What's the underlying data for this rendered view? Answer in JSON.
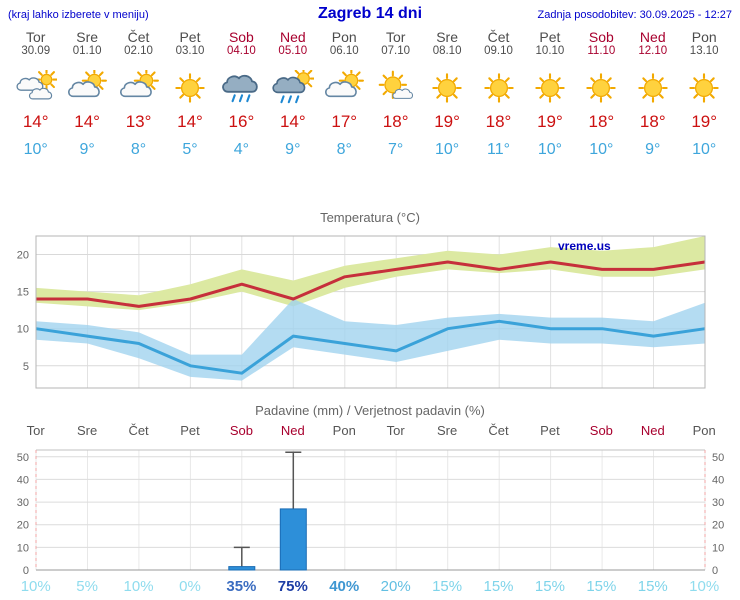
{
  "header": {
    "left_note": "(kraj lahko izberete v meniju)",
    "title": "Zagreb 14 dni",
    "updated": "Zadnja posodobitev: 30.09.2025 - 12:27"
  },
  "watermark": "vreme.us",
  "days": [
    {
      "name": "Tor",
      "date": "30.09",
      "weekend": false,
      "icon": "cloudy",
      "high": "14°",
      "low": "10°"
    },
    {
      "name": "Sre",
      "date": "01.10",
      "weekend": false,
      "icon": "partly-cloudy",
      "high": "14°",
      "low": "9°"
    },
    {
      "name": "Čet",
      "date": "02.10",
      "weekend": false,
      "icon": "partly-cloudy",
      "high": "13°",
      "low": "8°"
    },
    {
      "name": "Pet",
      "date": "03.10",
      "weekend": false,
      "icon": "sunny",
      "high": "14°",
      "low": "5°"
    },
    {
      "name": "Sob",
      "date": "04.10",
      "weekend": true,
      "icon": "rain",
      "high": "16°",
      "low": "4°"
    },
    {
      "name": "Ned",
      "date": "05.10",
      "weekend": true,
      "icon": "rain-showers",
      "high": "14°",
      "low": "9°"
    },
    {
      "name": "Pon",
      "date": "06.10",
      "weekend": false,
      "icon": "partly-cloudy",
      "high": "17°",
      "low": "8°"
    },
    {
      "name": "Tor",
      "date": "07.10",
      "weekend": false,
      "icon": "mostly-sunny",
      "high": "18°",
      "low": "7°"
    },
    {
      "name": "Sre",
      "date": "08.10",
      "weekend": false,
      "icon": "sunny",
      "high": "19°",
      "low": "10°"
    },
    {
      "name": "Čet",
      "date": "09.10",
      "weekend": false,
      "icon": "sunny",
      "high": "18°",
      "low": "11°"
    },
    {
      "name": "Pet",
      "date": "10.10",
      "weekend": false,
      "icon": "sunny",
      "high": "19°",
      "low": "10°"
    },
    {
      "name": "Sob",
      "date": "11.10",
      "weekend": true,
      "icon": "sunny",
      "high": "18°",
      "low": "10°"
    },
    {
      "name": "Ned",
      "date": "12.10",
      "weekend": true,
      "icon": "sunny",
      "high": "18°",
      "low": "9°"
    },
    {
      "name": "Pon",
      "date": "13.10",
      "weekend": false,
      "icon": "sunny",
      "high": "19°",
      "low": "10°"
    }
  ],
  "chart_data": [
    {
      "type": "line",
      "title": "Temperatura (°C)",
      "x_labels": [
        "Tor",
        "Sre",
        "Čet",
        "Pet",
        "Sob",
        "Ned",
        "Pon",
        "Tor",
        "Sre",
        "Čet",
        "Pet",
        "Sob",
        "Ned",
        "Pon"
      ],
      "y_ticks": [
        5,
        10,
        15,
        20
      ],
      "ylim": [
        2,
        22.5
      ],
      "grid": true,
      "series": [
        {
          "name": "high",
          "values": [
            14,
            14,
            13,
            14,
            16,
            14,
            17,
            18,
            19,
            18,
            19,
            18,
            18,
            19
          ]
        },
        {
          "name": "high_band_upper",
          "values": [
            15.5,
            15,
            14.5,
            16,
            18,
            16.5,
            18.5,
            19.5,
            20.5,
            20,
            21,
            20.5,
            21,
            22.5
          ]
        },
        {
          "name": "high_band_lower",
          "values": [
            13.5,
            13,
            12.5,
            13.5,
            15,
            13,
            15.5,
            17,
            18,
            17.5,
            18,
            17,
            17,
            18
          ]
        },
        {
          "name": "low",
          "values": [
            10,
            9,
            8,
            5,
            4,
            9,
            8,
            7,
            10,
            11,
            10,
            10,
            9,
            10
          ]
        },
        {
          "name": "low_band_upper",
          "values": [
            11,
            10.5,
            9.5,
            6.5,
            6.5,
            14,
            11,
            10.5,
            11.5,
            12,
            11.5,
            11.5,
            11,
            13.5
          ]
        },
        {
          "name": "low_band_lower",
          "values": [
            8.5,
            8,
            6,
            3.5,
            3,
            7.5,
            6.5,
            5.5,
            7,
            8.5,
            8,
            8,
            7.5,
            8
          ]
        }
      ]
    },
    {
      "type": "bar",
      "title": "Padavine (mm) / Verjetnost padavin (%)",
      "x_labels": [
        "Tor",
        "Sre",
        "Čet",
        "Pet",
        "Sob",
        "Ned",
        "Pon",
        "Tor",
        "Sre",
        "Čet",
        "Pet",
        "Sob",
        "Ned",
        "Pon"
      ],
      "y_ticks": [
        0,
        10,
        20,
        30,
        40,
        50
      ],
      "ylim": [
        0,
        53
      ],
      "values": [
        0,
        0,
        0,
        0,
        1.5,
        27,
        0,
        0,
        0,
        0,
        0,
        0,
        0,
        0
      ],
      "whisker_max": [
        0,
        0,
        0,
        0,
        10,
        52,
        0,
        0,
        0,
        0,
        0,
        0,
        0,
        0
      ],
      "probabilities": [
        "10%",
        "5%",
        "10%",
        "0%",
        "35%",
        "75%",
        "40%",
        "20%",
        "15%",
        "15%",
        "15%",
        "15%",
        "15%",
        "10%"
      ],
      "prob_colors": [
        "#8fdcee",
        "#8fdcee",
        "#8fdcee",
        "#8fdcee",
        "#3a6cc0",
        "#1c3da5",
        "#3f97d2",
        "#62bfe2",
        "#7fd4ea",
        "#7fd4ea",
        "#7fd4ea",
        "#7fd4ea",
        "#7fd4ea",
        "#8fdcee"
      ]
    }
  ],
  "colors": {
    "link_blue": "#0000cc",
    "weekday_text": "#4d4d4d",
    "weekend_text": "#a8002e",
    "high_temp_text": "#cc1111",
    "low_temp_text": "#3ea6dc",
    "temp_high_line": "#c62f3b",
    "temp_high_band": "#dce9a2",
    "temp_low_line": "#3aa2d9",
    "temp_low_band": "#9fd2ee",
    "precip_bar": "#2d8fd9",
    "precip_bar_border": "#1a6cb4",
    "grid": "#d9d9d9",
    "axis_text": "#666666"
  }
}
